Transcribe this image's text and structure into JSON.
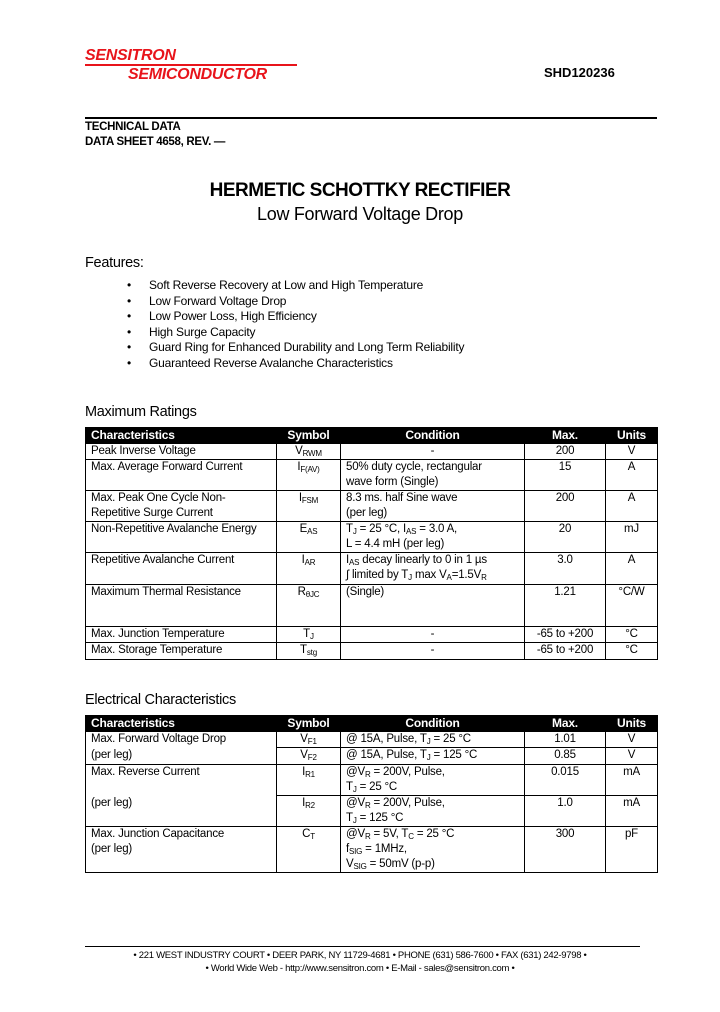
{
  "header": {
    "logo_line1": "SENSITRON",
    "logo_line2": "SEMICONDUCTOR",
    "part_number": "SHD120236",
    "technical_data": "TECHNICAL DATA",
    "data_sheet": "DATA SHEET 4658, REV. —",
    "logo_color": "#e8141b"
  },
  "title": "HERMETIC SCHOTTKY RECTIFIER",
  "subtitle": "Low Forward Voltage Drop",
  "features": {
    "heading": "Features:",
    "bullet": "•",
    "items": [
      "Soft Reverse Recovery at Low and High Temperature",
      "Low Forward Voltage Drop",
      "Low Power Loss, High Efficiency",
      "High Surge Capacity",
      "Guard Ring for Enhanced Durability and Long Term Reliability",
      "Guaranteed Reverse Avalanche Characteristics"
    ]
  },
  "max_ratings": {
    "heading": "Maximum Ratings",
    "columns": [
      "Characteristics",
      "Symbol",
      "Condition",
      "Max.",
      "Units"
    ],
    "rows": [
      {
        "char": [
          [
            "Peak Inverse Voltage"
          ]
        ],
        "sym": [
          [
            "V",
            {
              "sub": "RWM"
            }
          ]
        ],
        "cond": [
          [
            "-"
          ]
        ],
        "max": "200",
        "unit": "V"
      },
      {
        "char": [
          [
            "Max. Average Forward Current"
          ]
        ],
        "sym": [
          [
            "I",
            {
              "sub": "F(AV)"
            }
          ]
        ],
        "cond": [
          [
            "50% duty cycle, rectangular"
          ],
          [
            "wave form (Single)"
          ]
        ],
        "max": "15",
        "unit": "A"
      },
      {
        "char": [
          [
            "Max. Peak One Cycle Non-"
          ],
          [
            "Repetitive Surge Current"
          ]
        ],
        "sym": [
          [
            "I",
            {
              "sub": "FSM"
            }
          ]
        ],
        "cond": [
          [
            "8.3 ms. half Sine wave"
          ],
          [
            "(per leg)"
          ]
        ],
        "max": "200",
        "unit": "A"
      },
      {
        "char": [
          [
            "Non-Repetitive Avalanche Energy"
          ]
        ],
        "sym": [
          [
            "E",
            {
              "sub": "AS"
            }
          ]
        ],
        "cond": [
          [
            "T",
            {
              "sub": "J"
            },
            " = 25 °C, I",
            {
              "sub": "AS"
            },
            " = 3.0 A,"
          ],
          [
            "L = 4.4 mH (per leg)"
          ]
        ],
        "max": "20",
        "unit": "mJ"
      },
      {
        "char": [
          [
            "Repetitive Avalanche Current"
          ]
        ],
        "sym": [
          [
            "I",
            {
              "sub": "AR"
            }
          ]
        ],
        "cond": [
          [
            "I",
            {
              "sub": "AS"
            },
            " decay linearly to 0 in 1 µs"
          ],
          [
            "∫ limited by T",
            {
              "sub": "J"
            },
            " max V",
            {
              "sub": "A"
            },
            "=1.5V",
            {
              "sub": "R"
            }
          ]
        ],
        "max": "3.0",
        "unit": "A"
      },
      {
        "char": [
          [
            "Maximum Thermal Resistance"
          ]
        ],
        "sym": [
          [
            "R",
            {
              "sub": "θJC"
            }
          ]
        ],
        "cond": [
          [
            "(Single)"
          ]
        ],
        "max": "1.21",
        "unit": "°C/W"
      },
      {
        "char": [
          [
            "Max. Junction Temperature"
          ]
        ],
        "sym": [
          [
            "T",
            {
              "sub": "J"
            }
          ]
        ],
        "cond": [
          [
            "-"
          ]
        ],
        "max": "-65 to +200",
        "unit": "°C"
      },
      {
        "char": [
          [
            "Max. Storage Temperature"
          ]
        ],
        "sym": [
          [
            "T",
            {
              "sub": "stg"
            }
          ]
        ],
        "cond": [
          [
            "-"
          ]
        ],
        "max": "-65 to +200",
        "unit": "°C"
      }
    ]
  },
  "electrical": {
    "heading": "Electrical Characteristics",
    "columns": [
      "Characteristics",
      "Symbol",
      "Condition",
      "Max.",
      "Units"
    ],
    "rows": [
      {
        "char": [
          [
            "Max. Forward Voltage Drop"
          ]
        ],
        "rowspan": 1,
        "sym": [
          [
            "V",
            {
              "sub": "F1"
            }
          ]
        ],
        "cond": [
          [
            "@ 15A, Pulse, T",
            {
              "sub": "J"
            },
            " = 25 °C"
          ]
        ],
        "max": "1.01",
        "unit": "V"
      },
      {
        "char": [
          [
            "(per leg)"
          ]
        ],
        "rowspan": 1,
        "sym": [
          [
            "V",
            {
              "sub": "F2"
            }
          ]
        ],
        "cond": [
          [
            "@ 15A, Pulse, T",
            {
              "sub": "J"
            },
            " = 125 °C"
          ]
        ],
        "max": "0.85",
        "unit": "V"
      },
      {
        "char": [
          [
            "Max. Reverse Current"
          ]
        ],
        "rowspan": 1,
        "sym": [
          [
            "I",
            {
              "sub": "R1"
            }
          ]
        ],
        "cond": [
          [
            "@V",
            {
              "sub": "R"
            },
            " = 200V, Pulse,"
          ],
          [
            "T",
            {
              "sub": "J"
            },
            " = 25 °C"
          ]
        ],
        "max": "0.015",
        "unit": "mA"
      },
      {
        "char": [
          [
            "(per leg)"
          ]
        ],
        "rowspan": 1,
        "sym": [
          [
            "I",
            {
              "sub": "R2"
            }
          ]
        ],
        "cond": [
          [
            "@V",
            {
              "sub": "R"
            },
            " = 200V, Pulse,"
          ],
          [
            "T",
            {
              "sub": "J"
            },
            " = 125 °C"
          ]
        ],
        "max": "1.0",
        "unit": "mA"
      },
      {
        "char": [
          [
            "Max. Junction Capacitance"
          ],
          [
            "(per leg)"
          ]
        ],
        "rowspan": 1,
        "sym": [
          [
            "C",
            {
              "sub": "T"
            }
          ]
        ],
        "cond": [
          [
            "@V",
            {
              "sub": "R"
            },
            " = 5V, T",
            {
              "sub": "C"
            },
            " = 25 °C"
          ],
          [
            "f",
            {
              "sub": "SIG"
            },
            " = 1MHz,"
          ],
          [
            "V",
            {
              "sub": "SIG"
            },
            " = 50mV (p-p)"
          ]
        ],
        "max": "300",
        "unit": "pF"
      }
    ]
  },
  "footer": {
    "line1": "• 221 WEST INDUSTRY COURT • DEER PARK, NY 11729-4681 • PHONE (631) 586-7600 • FAX (631) 242-9798 •",
    "line2": "• World Wide Web - http://www.sensitron.com • E-Mail - sales@sensitron.com •"
  }
}
